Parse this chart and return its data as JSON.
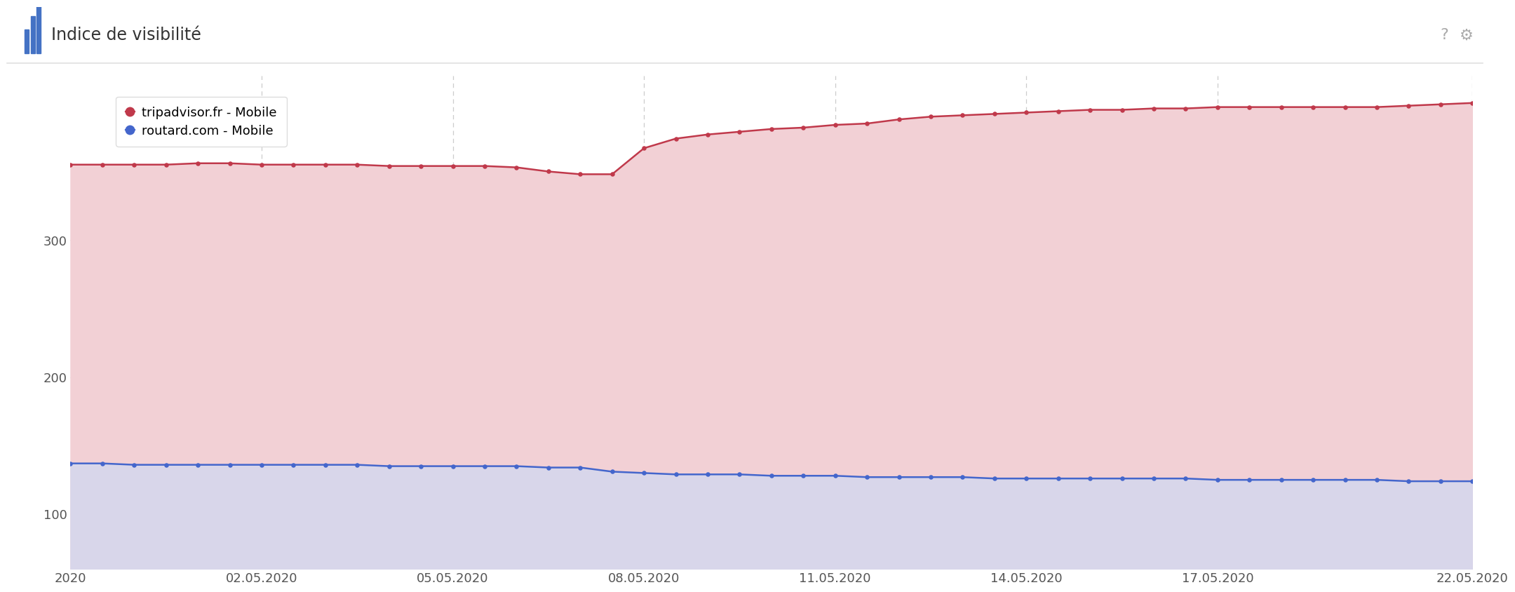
{
  "title": "Indice de visibilité",
  "background_color": "#ffffff",
  "tripadvisor_color": "#c0394b",
  "tripadvisor_fill": "#f2d0d5",
  "routard_color": "#4466cc",
  "routard_fill": "#d8d6ea",
  "tripadvisor_label": "tripadvisor.fr - Mobile",
  "routard_label": "routard.com - Mobile",
  "yticks": [
    100,
    200,
    300
  ],
  "ylim": [
    60,
    420
  ],
  "xtick_labels": [
    "2020",
    "02.05.2020",
    "05.05.2020",
    "08.05.2020",
    "11.05.2020",
    "14.05.2020",
    "17.05.2020",
    "22.05.2020"
  ],
  "xtick_positions": [
    0,
    6,
    12,
    18,
    24,
    30,
    36,
    44
  ],
  "tripadvisor_x": [
    0,
    1,
    2,
    3,
    4,
    5,
    6,
    7,
    8,
    9,
    10,
    11,
    12,
    13,
    14,
    15,
    16,
    17,
    18,
    19,
    20,
    21,
    22,
    23,
    24,
    25,
    26,
    27,
    28,
    29,
    30,
    31,
    32,
    33,
    34,
    35,
    36,
    37,
    38,
    39,
    40,
    41,
    42,
    43,
    44
  ],
  "tripadvisor_y": [
    355,
    355,
    355,
    355,
    356,
    356,
    355,
    355,
    355,
    355,
    354,
    354,
    354,
    354,
    353,
    350,
    348,
    348,
    367,
    374,
    377,
    379,
    381,
    382,
    384,
    385,
    388,
    390,
    391,
    392,
    393,
    394,
    395,
    395,
    396,
    396,
    397,
    397,
    397,
    397,
    397,
    397,
    398,
    399,
    400
  ],
  "routard_x": [
    0,
    1,
    2,
    3,
    4,
    5,
    6,
    7,
    8,
    9,
    10,
    11,
    12,
    13,
    14,
    15,
    16,
    17,
    18,
    19,
    20,
    21,
    22,
    23,
    24,
    25,
    26,
    27,
    28,
    29,
    30,
    31,
    32,
    33,
    34,
    35,
    36,
    37,
    38,
    39,
    40,
    41,
    42,
    43,
    44
  ],
  "routard_y": [
    137,
    137,
    136,
    136,
    136,
    136,
    136,
    136,
    136,
    136,
    135,
    135,
    135,
    135,
    135,
    134,
    134,
    131,
    130,
    129,
    129,
    129,
    128,
    128,
    128,
    127,
    127,
    127,
    127,
    126,
    126,
    126,
    126,
    126,
    126,
    126,
    125,
    125,
    125,
    125,
    125,
    125,
    124,
    124,
    124
  ],
  "xlim": [
    0,
    44
  ],
  "grid_color": "#cccccc",
  "header_bg": "#f7f7f7",
  "header_separator": "#e0e0e0",
  "icon_color": "#4472c4",
  "title_color": "#333333",
  "tick_color": "#555555",
  "tick_fontsize": 13,
  "title_fontsize": 17,
  "legend_fontsize": 13
}
